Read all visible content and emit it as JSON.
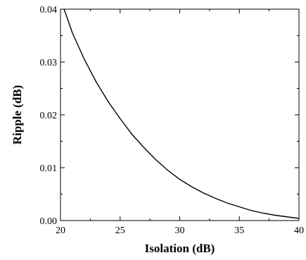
{
  "chart_data": {
    "type": "line",
    "title": "",
    "xlabel": "Isolation (dB)",
    "ylabel": "Ripple (dB)",
    "xlim": [
      20,
      40
    ],
    "ylim": [
      0,
      0.04
    ],
    "x_ticks": [
      20,
      25,
      30,
      35,
      40
    ],
    "x_tick_labels": [
      "20",
      "25",
      "30",
      "35",
      "40"
    ],
    "y_ticks": [
      0,
      0.01,
      0.02,
      0.03,
      0.04
    ],
    "y_tick_labels": [
      "0.00",
      "0.01",
      "0.02",
      "0.03",
      "0.04"
    ],
    "grid": false,
    "legend": "none",
    "series": [
      {
        "color": "#000000",
        "x": [
          20.3,
          21,
          22,
          23,
          24,
          25,
          26,
          27,
          28,
          29,
          30,
          31,
          32,
          33,
          34,
          35,
          36,
          37,
          38,
          39,
          40
        ],
        "y": [
          0.04,
          0.0355,
          0.0305,
          0.0262,
          0.0225,
          0.0193,
          0.0163,
          0.0138,
          0.0115,
          0.0095,
          0.0078,
          0.0064,
          0.0052,
          0.0042,
          0.0033,
          0.0026,
          0.0019,
          0.0014,
          0.001,
          0.0007,
          0.0004
        ]
      }
    ]
  }
}
